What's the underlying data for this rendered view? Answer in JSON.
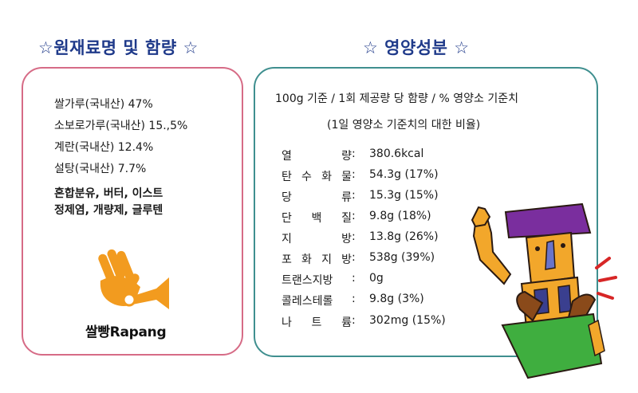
{
  "headings": {
    "ingredients": "☆원재료명 및 함량 ☆",
    "nutrition": "☆ 영양성분 ☆"
  },
  "ingredients": [
    {
      "text": "쌀가루(국내산) 47%",
      "bold": false
    },
    {
      "text": "소보로가루(국내산) 15.,5%",
      "bold": false
    },
    {
      "text": "계란(국내산) 12.4%",
      "bold": false
    },
    {
      "text": "설탕(국내산) 7.7%",
      "bold": false
    },
    {
      "text": "혼합분유, 버터, 이스트",
      "bold": true
    },
    {
      "text": "정제염, 개량제, 글루텐",
      "bold": true
    }
  ],
  "nutrition": {
    "basis": "100g 기준 / 1회 제공량 당 함량 / % 영양소 기준치",
    "basis_note": "(1일 영양소 기준치의 대한 비율)",
    "rows": [
      {
        "label": [
          "열",
          "량"
        ],
        "value": "380.6kcal"
      },
      {
        "label": [
          "탄",
          "수",
          "화",
          "물"
        ],
        "value": "54.3g (17%)"
      },
      {
        "label": [
          "당",
          "류"
        ],
        "value": "15.3g (15%)"
      },
      {
        "label": [
          "단",
          "백",
          "질"
        ],
        "value": "9.8g (18%)"
      },
      {
        "label": [
          "지",
          "방"
        ],
        "value": "13.8g (26%)"
      },
      {
        "label": [
          "포",
          "화",
          "지",
          "방"
        ],
        "value": "538g (39%)"
      },
      {
        "label": [
          "트랜스지방"
        ],
        "value": "0g"
      },
      {
        "label": [
          "콜레스테롤"
        ],
        "value": "9.8g (3%)"
      },
      {
        "label": [
          "나",
          "트",
          "륨"
        ],
        "value": "302mg (15%)"
      }
    ],
    "separator": ":"
  },
  "brand": {
    "name": "쌀빵Rapang",
    "logo_icon": "hand-trumpet-logo-icon",
    "logo_color": "#f29b1f"
  },
  "mascot_icon": "baker-mascot-icon",
  "colors": {
    "heading": "#1f3a8a",
    "left_box_border": "#d66b86",
    "right_box_border": "#3f8f8f"
  }
}
